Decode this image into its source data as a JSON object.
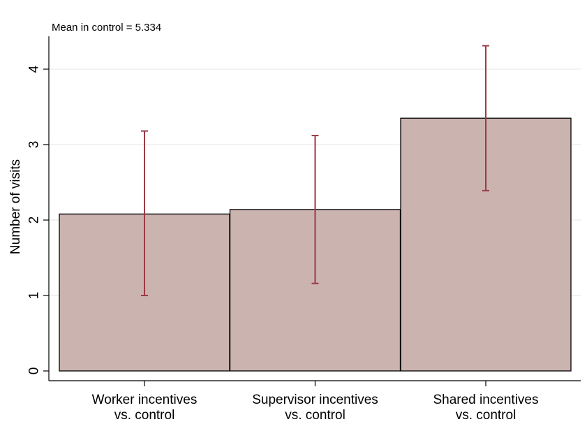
{
  "chart_data": {
    "type": "bar",
    "note": "Mean in control = 5.334",
    "ylabel": "Number of visits",
    "xlabel": "",
    "categories": [
      [
        "Worker incentives",
        "vs. control"
      ],
      [
        "Supervisor incentives",
        "vs. control"
      ],
      [
        "Shared incentives",
        "vs. control"
      ]
    ],
    "values": [
      2.08,
      2.14,
      3.35
    ],
    "ci_low": [
      1.0,
      1.16,
      2.39
    ],
    "ci_high": [
      3.18,
      3.12,
      4.31
    ],
    "ylim": [
      0,
      4.4
    ],
    "yticks": [
      0,
      1,
      2,
      3,
      4
    ],
    "grid": true,
    "colors": {
      "bar_fill": "#cbb3af",
      "bar_stroke": "#000000",
      "errorbar": "#9b3a45",
      "grid": "#eeeeee"
    }
  }
}
